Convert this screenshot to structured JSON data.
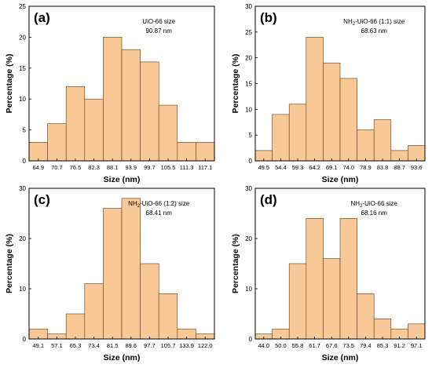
{
  "chart_data": [
    {
      "type": "bar",
      "panel_label": "(a)",
      "annotation": [
        "UiO-66 size",
        "90.87 nm"
      ],
      "categories": [
        "64.9",
        "70.7",
        "76.5",
        "82.3",
        "88.1",
        "93.9",
        "99.7",
        "105.5",
        "111.3",
        "117.1"
      ],
      "values": [
        3,
        6,
        12,
        10,
        20,
        18,
        16,
        9,
        3,
        3
      ],
      "xlabel": "Size (nm)",
      "ylabel": "Percentage (%)",
      "ylim": [
        0,
        25
      ],
      "yticks": [
        0,
        5,
        10,
        15,
        20,
        25
      ],
      "grid": false,
      "color": "#f8c996"
    },
    {
      "type": "bar",
      "panel_label": "(b)",
      "annotation": [
        "NH2-UiO-66 (1:1) size",
        "68.63 nm"
      ],
      "categories": [
        "49.5",
        "54.4",
        "59.3",
        "64.2",
        "69.1",
        "74.0",
        "78.9",
        "83.8",
        "88.7",
        "93.6"
      ],
      "values": [
        2,
        9,
        11,
        24,
        19,
        16,
        6,
        8,
        2,
        3
      ],
      "xlabel": "Size (nm)",
      "ylabel": "Percentage (%)",
      "ylim": [
        0,
        30
      ],
      "yticks": [
        0,
        5,
        10,
        15,
        20,
        25,
        30
      ],
      "grid": false,
      "color": "#f8c996"
    },
    {
      "type": "bar",
      "panel_label": "(c)",
      "annotation": [
        "NH2-UiO-66 (1:2) size",
        "68.41 nm"
      ],
      "categories": [
        "49.1",
        "57.1",
        "65.3",
        "73.4",
        "81.5",
        "89.6",
        "97.7",
        "105.7",
        "133.9",
        "122.0"
      ],
      "values": [
        2,
        1,
        5,
        11,
        26,
        28,
        15,
        9,
        2,
        1
      ],
      "xlabel": "Size (nm)",
      "ylabel": "Percentage (%)",
      "ylim": [
        0,
        30
      ],
      "yticks": [
        0,
        10,
        20,
        30
      ],
      "grid": false,
      "color": "#f8c996"
    },
    {
      "type": "bar",
      "panel_label": "(d)",
      "annotation": [
        "NH2-UiO-66 size",
        "68.16 nm"
      ],
      "categories": [
        "44.0",
        "50.0",
        "55.8",
        "61.7",
        "67.6",
        "73.5",
        "79.4",
        "85.3",
        "91.2",
        "97.1"
      ],
      "values": [
        1,
        2,
        15,
        24,
        16,
        24,
        9,
        4,
        2,
        3
      ],
      "xlabel": "Size (nm)",
      "ylabel": "Percentage (%)",
      "ylim": [
        0,
        30
      ],
      "yticks": [
        0,
        10,
        20,
        30
      ],
      "grid": false,
      "color": "#f8c996"
    }
  ]
}
